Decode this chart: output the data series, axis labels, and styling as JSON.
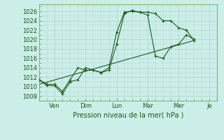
{
  "title": "Pression niveau de la mer( hPa )",
  "background_color": "#cceee8",
  "grid_color": "#aad4cc",
  "line_color": "#1a5c1a",
  "ylim": [
    1007,
    1027.5
  ],
  "yticks": [
    1008,
    1010,
    1012,
    1014,
    1016,
    1018,
    1020,
    1022,
    1024,
    1026
  ],
  "xtick_positions": [
    2.0,
    6.0,
    10.0,
    14.0,
    18.0,
    22.0
  ],
  "xtick_labels": [
    "Ven",
    "Dim",
    "Lun",
    "Mar",
    "Mer",
    "Je"
  ],
  "xlim": [
    0,
    23
  ],
  "series1_x": [
    0,
    1,
    2,
    3,
    4,
    5,
    6,
    7,
    8,
    9,
    10,
    11,
    12,
    13,
    14,
    15,
    16,
    17,
    18,
    19,
    20
  ],
  "series1_y": [
    1011.5,
    1010.5,
    1010.5,
    1009.0,
    1011.5,
    1014.0,
    1013.5,
    1013.5,
    1013.0,
    1014.0,
    1021.5,
    1025.8,
    1026.0,
    1025.8,
    1025.8,
    1025.5,
    1024.0,
    1024.0,
    1022.5,
    1022.0,
    1019.8
  ],
  "series2_x": [
    0,
    1,
    2,
    3,
    4,
    5,
    6,
    7,
    8,
    9,
    10,
    11,
    12,
    13,
    14,
    15,
    16,
    17,
    18,
    19,
    20
  ],
  "series2_y": [
    1011.5,
    1010.2,
    1010.2,
    1008.5,
    1011.0,
    1011.5,
    1014.0,
    1013.5,
    1013.0,
    1013.5,
    1019.0,
    1025.5,
    1026.2,
    1025.8,
    1025.2,
    1016.5,
    1016.0,
    1018.5,
    1019.0,
    1021.0,
    1020.0
  ],
  "series3_x": [
    0,
    20
  ],
  "series3_y": [
    1010.5,
    1019.8
  ],
  "figsize": [
    3.2,
    2.0
  ],
  "dpi": 100
}
